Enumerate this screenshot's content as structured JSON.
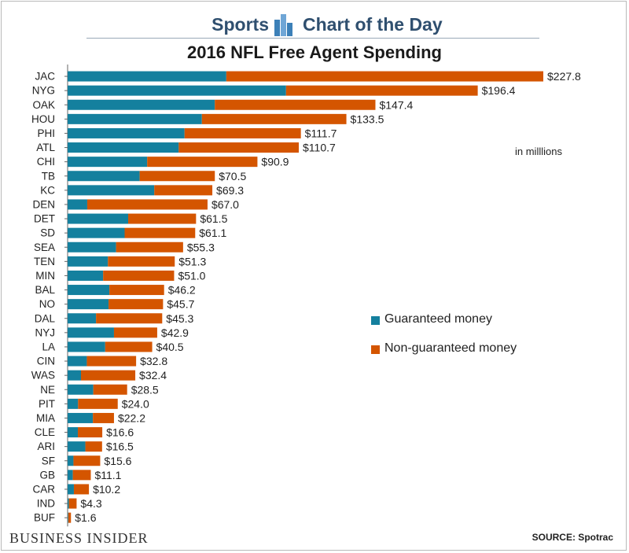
{
  "header": {
    "left": "Sports",
    "right": "Chart of the Day",
    "logo_icon": "bar-chart-logo-icon"
  },
  "unit_note": "in milllions",
  "footer": {
    "brand": "BUSINESS INSIDER",
    "source": "SOURCE: Spotrac"
  },
  "colors": {
    "guaranteed": "#14809e",
    "non_guaranteed": "#d45500",
    "header_text": "#2f4f6f"
  },
  "chart_data": {
    "type": "bar",
    "orientation": "horizontal",
    "stacked": true,
    "title": "2016 NFL Free Agent Spending",
    "categories": [
      "JAC",
      "NYG",
      "OAK",
      "HOU",
      "PHI",
      "ATL",
      "CHI",
      "TB",
      "KC",
      "DEN",
      "DET",
      "SD",
      "SEA",
      "TEN",
      "MIN",
      "BAL",
      "NO",
      "DAL",
      "NYJ",
      "LA",
      "CIN",
      "WAS",
      "NE",
      "PIT",
      "MIA",
      "CLE",
      "ARI",
      "SF",
      "GB",
      "CAR",
      "IND",
      "BUF"
    ],
    "series": [
      {
        "name": "Guaranteed money",
        "color": "#14809e",
        "values": [
          76.0,
          104.6,
          70.5,
          64.3,
          56.0,
          53.2,
          38.1,
          34.5,
          41.5,
          9.4,
          29.0,
          27.3,
          23.2,
          19.3,
          17.0,
          20.0,
          19.6,
          13.6,
          22.2,
          18.0,
          9.2,
          6.4,
          12.3,
          5.0,
          12.1,
          4.9,
          8.5,
          2.8,
          2.5,
          3.0,
          0.6,
          0.3
        ]
      },
      {
        "name": "Non-guaranteed money",
        "color": "#d45500",
        "values": [
          151.8,
          91.8,
          76.9,
          69.2,
          55.7,
          57.5,
          52.8,
          36.0,
          27.8,
          57.6,
          32.5,
          33.8,
          32.1,
          32.0,
          34.0,
          26.2,
          26.1,
          31.7,
          20.7,
          22.5,
          23.6,
          26.0,
          16.2,
          19.0,
          10.1,
          11.7,
          8.0,
          12.8,
          8.6,
          7.2,
          3.7,
          1.3
        ]
      }
    ],
    "totals": [
      227.8,
      196.4,
      147.4,
      133.5,
      111.7,
      110.7,
      90.9,
      70.5,
      69.3,
      67.0,
      61.5,
      61.1,
      55.3,
      51.3,
      51.0,
      46.2,
      45.7,
      45.3,
      42.9,
      40.5,
      32.8,
      32.4,
      28.5,
      24.0,
      22.2,
      16.6,
      16.5,
      15.6,
      11.1,
      10.2,
      4.3,
      1.6
    ],
    "value_labels": [
      "$227.8",
      "$196.4",
      "$147.4",
      "$133.5",
      "$111.7",
      "$110.7",
      "$90.9",
      "$70.5",
      "$69.3",
      "$67.0",
      "$61.5",
      "$61.1",
      "$55.3",
      "$51.3",
      "$51.0",
      "$46.2",
      "$45.7",
      "$45.3",
      "$42.9",
      "$40.5",
      "$32.8",
      "$32.4",
      "$28.5",
      "$24.0",
      "$22.2",
      "$16.6",
      "$16.5",
      "$15.6",
      "$11.1",
      "$10.2",
      "$4.3",
      "$1.6"
    ],
    "xlim": [
      0,
      227.8
    ],
    "grid": false,
    "legend_position": "right-middle"
  }
}
